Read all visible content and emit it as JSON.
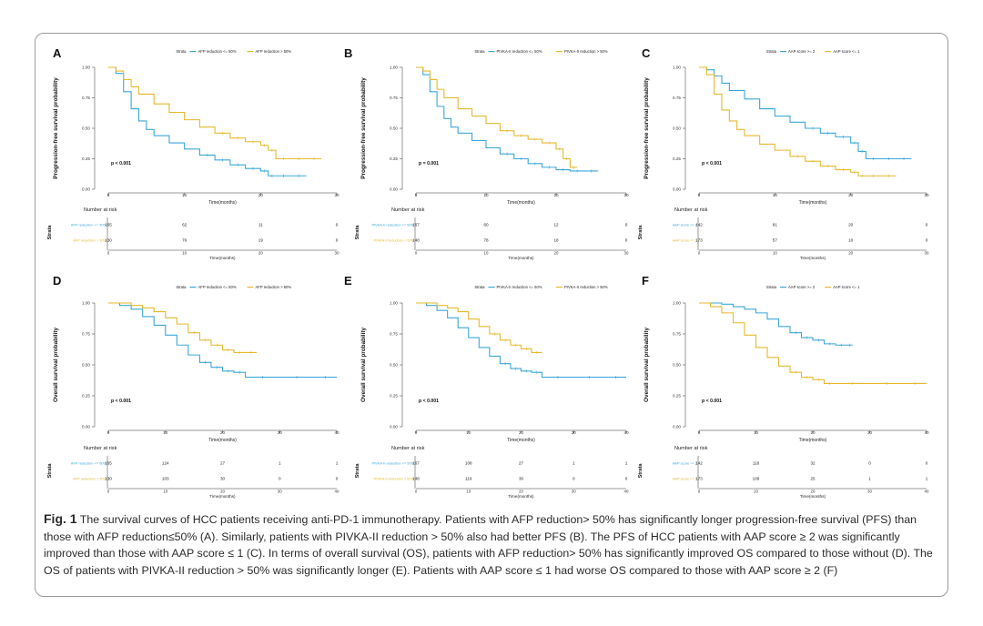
{
  "colors": {
    "series_a": "#3ba7d9",
    "series_b": "#e6b92d",
    "axis": "#333333",
    "frame": "#9a9a9a"
  },
  "caption": {
    "label": "Fig. 1",
    "text": "The survival curves of HCC patients receiving anti-PD-1 immunotherapy. Patients with AFP reduction> 50% has significantly longer progression-free survival (PFS) than those with AFP reduction≤50% (A). Similarly, patients with PIVKA-II reduction > 50% also had better PFS (B). The PFS of HCC patients with AAP score ≥ 2 was significantly improved than those with AAP score ≤ 1 (C). In terms of overall survival (OS), patients with AFP reduction> 50% has significantly improved OS compared to those without (D). The OS of patients with PIVKA-II reduction > 50% was significantly longer (E). Patients with AAP score ≤ 1 had worse OS compared to those with AAP score ≥ 2 (F)"
  },
  "chart_data": [
    {
      "panel": "A",
      "type": "line",
      "ylabel": "Progression-free survival probability",
      "xlabel": "Time(months)",
      "legend_title": "Strata",
      "xlim": [
        0,
        30
      ],
      "ylim": [
        0,
        1
      ],
      "xticks": [
        0,
        10,
        20,
        30
      ],
      "yticks": [
        "0.00",
        "0.25",
        "0.50",
        "0.75",
        "1.00"
      ],
      "pvalue": "p < 0.001",
      "risk_title": "Number at risk",
      "risk_ylabel": "Strata",
      "risk_times": [
        0,
        10,
        20,
        30
      ],
      "series": [
        {
          "name": "AFP reduction <= 50%",
          "risk": [
            "165",
            "62",
            "11",
            "0"
          ],
          "x": [
            0,
            1,
            2,
            3,
            4,
            5,
            6,
            8,
            10,
            12,
            14,
            16,
            18,
            20,
            21,
            22,
            24,
            26
          ],
          "y": [
            1.0,
            0.95,
            0.8,
            0.66,
            0.56,
            0.49,
            0.44,
            0.38,
            0.33,
            0.28,
            0.24,
            0.2,
            0.17,
            0.15,
            0.11,
            0.11,
            0.11,
            0.11
          ]
        },
        {
          "name": "AFP reduction > 50%",
          "risk": [
            "130",
            "76",
            "19",
            "0"
          ],
          "x": [
            0,
            1,
            2,
            3,
            4,
            6,
            8,
            10,
            12,
            14,
            16,
            18,
            20,
            21,
            22,
            24,
            26,
            28
          ],
          "y": [
            1.0,
            0.97,
            0.9,
            0.84,
            0.78,
            0.7,
            0.63,
            0.57,
            0.51,
            0.46,
            0.42,
            0.39,
            0.36,
            0.32,
            0.25,
            0.25,
            0.25,
            0.25
          ]
        }
      ]
    },
    {
      "panel": "B",
      "type": "line",
      "ylabel": "Progression-free survival probability",
      "xlabel": "Time(months)",
      "legend_title": "Strata",
      "xlim": [
        0,
        30
      ],
      "ylim": [
        0,
        1
      ],
      "xticks": [
        0,
        10,
        20,
        30
      ],
      "yticks": [
        "0.00",
        "0.25",
        "0.50",
        "0.75",
        "1.00"
      ],
      "pvalue": "p = 0.001",
      "risk_title": "Number at risk",
      "risk_ylabel": "Strata",
      "risk_times": [
        0,
        10,
        20,
        30
      ],
      "series": [
        {
          "name": "PIVKA-II reduction <= 50%",
          "risk": [
            "167",
            "60",
            "12",
            "0"
          ],
          "x": [
            0,
            1,
            2,
            3,
            4,
            5,
            6,
            8,
            10,
            12,
            14,
            16,
            18,
            20,
            22,
            24,
            26
          ],
          "y": [
            1.0,
            0.94,
            0.8,
            0.68,
            0.58,
            0.51,
            0.46,
            0.4,
            0.34,
            0.29,
            0.25,
            0.21,
            0.18,
            0.16,
            0.15,
            0.15,
            0.15
          ]
        },
        {
          "name": "PIVKA-II reduction > 50%",
          "risk": [
            "148",
            "78",
            "18",
            "0"
          ],
          "x": [
            0,
            1,
            2,
            3,
            4,
            6,
            8,
            10,
            12,
            14,
            16,
            18,
            20,
            21,
            22,
            23
          ],
          "y": [
            1.0,
            0.97,
            0.9,
            0.82,
            0.75,
            0.66,
            0.6,
            0.54,
            0.48,
            0.44,
            0.41,
            0.38,
            0.33,
            0.25,
            0.18,
            0.18
          ]
        }
      ]
    },
    {
      "panel": "C",
      "type": "line",
      "ylabel": "Progression-free survival probability",
      "xlabel": "Time(months)",
      "legend_title": "Strata",
      "xlim": [
        0,
        30
      ],
      "ylim": [
        0,
        1
      ],
      "xticks": [
        0,
        10,
        20,
        30
      ],
      "yticks": [
        "0.00",
        "0.25",
        "0.50",
        "0.75",
        "1.00"
      ],
      "pvalue": "p < 0.001",
      "risk_title": "Number at risk",
      "risk_ylabel": "Strata",
      "risk_times": [
        0,
        10,
        20,
        30
      ],
      "series": [
        {
          "name": "AAP score >= 2",
          "risk": [
            "142",
            "81",
            "20",
            "0"
          ],
          "x": [
            0,
            1,
            2,
            3,
            4,
            6,
            8,
            10,
            12,
            14,
            16,
            18,
            20,
            21,
            22,
            24,
            26,
            28
          ],
          "y": [
            1.0,
            0.98,
            0.93,
            0.87,
            0.81,
            0.74,
            0.66,
            0.6,
            0.55,
            0.5,
            0.46,
            0.43,
            0.38,
            0.31,
            0.25,
            0.25,
            0.25,
            0.25
          ]
        },
        {
          "name": "AAP score <= 1",
          "risk": [
            "173",
            "57",
            "10",
            "0"
          ],
          "x": [
            0,
            1,
            2,
            3,
            4,
            5,
            6,
            8,
            10,
            12,
            14,
            16,
            18,
            20,
            21,
            22,
            24,
            26
          ],
          "y": [
            1.0,
            0.94,
            0.78,
            0.65,
            0.56,
            0.49,
            0.44,
            0.37,
            0.32,
            0.27,
            0.23,
            0.19,
            0.16,
            0.14,
            0.11,
            0.11,
            0.11,
            0.11
          ]
        }
      ]
    },
    {
      "panel": "D",
      "type": "line",
      "ylabel": "Overall survival probability",
      "xlabel": "Time(months)",
      "legend_title": "Strata",
      "xlim": [
        0,
        40
      ],
      "ylim": [
        0,
        1
      ],
      "xticks": [
        0,
        10,
        20,
        30,
        40
      ],
      "yticks": [
        "0.00",
        "0.25",
        "0.50",
        "0.75",
        "1.00"
      ],
      "pvalue": "p < 0.001",
      "risk_title": "Number at risk",
      "risk_ylabel": "Strata",
      "risk_times": [
        0,
        10,
        20,
        30,
        40
      ],
      "series": [
        {
          "name": "AFP reduction <= 50%",
          "risk": [
            "165",
            "124",
            "27",
            "1",
            "1"
          ],
          "x": [
            0,
            2,
            4,
            6,
            8,
            10,
            12,
            14,
            16,
            18,
            20,
            22,
            24,
            30,
            36,
            40
          ],
          "y": [
            1.0,
            0.98,
            0.95,
            0.89,
            0.82,
            0.74,
            0.66,
            0.58,
            0.52,
            0.48,
            0.45,
            0.44,
            0.4,
            0.4,
            0.4,
            0.4
          ]
        },
        {
          "name": "AFP reduction > 50%",
          "risk": [
            "130",
            "103",
            "30",
            "0",
            "0"
          ],
          "x": [
            0,
            2,
            4,
            6,
            8,
            10,
            12,
            14,
            16,
            18,
            20,
            22,
            24,
            26
          ],
          "y": [
            1.0,
            1.0,
            0.98,
            0.96,
            0.93,
            0.88,
            0.83,
            0.76,
            0.7,
            0.66,
            0.62,
            0.6,
            0.6,
            0.6
          ]
        }
      ]
    },
    {
      "panel": "E",
      "type": "line",
      "ylabel": "Overall survival probability",
      "xlabel": "Time(months)",
      "legend_title": "Strata",
      "xlim": [
        0,
        40
      ],
      "ylim": [
        0,
        1
      ],
      "xticks": [
        0,
        10,
        20,
        30,
        40
      ],
      "yticks": [
        "0.00",
        "0.25",
        "0.50",
        "0.75",
        "1.00"
      ],
      "pvalue": "p < 0.001",
      "risk_title": "Number at risk",
      "risk_ylabel": "Strata",
      "risk_times": [
        0,
        10,
        20,
        30,
        40
      ],
      "series": [
        {
          "name": "PIVKA-II reduction <= 50%",
          "risk": [
            "167",
            "108",
            "27",
            "1",
            "1"
          ],
          "x": [
            0,
            2,
            4,
            6,
            8,
            10,
            12,
            14,
            16,
            18,
            20,
            22,
            24,
            30,
            36,
            40
          ],
          "y": [
            1.0,
            0.98,
            0.94,
            0.88,
            0.8,
            0.72,
            0.64,
            0.57,
            0.51,
            0.47,
            0.45,
            0.44,
            0.4,
            0.4,
            0.4,
            0.4
          ]
        },
        {
          "name": "PIVKA-II reduction > 50%",
          "risk": [
            "148",
            "119",
            "30",
            "0",
            "0"
          ],
          "x": [
            0,
            2,
            4,
            6,
            8,
            10,
            12,
            14,
            16,
            18,
            20,
            22,
            24
          ],
          "y": [
            1.0,
            1.0,
            0.98,
            0.96,
            0.93,
            0.87,
            0.81,
            0.75,
            0.7,
            0.66,
            0.63,
            0.6,
            0.6
          ]
        }
      ]
    },
    {
      "panel": "F",
      "type": "line",
      "ylabel": "Overall survival probability",
      "xlabel": "Time(months)",
      "legend_title": "Strata",
      "xlim": [
        0,
        40
      ],
      "ylim": [
        0,
        1
      ],
      "xticks": [
        0,
        10,
        20,
        30,
        40
      ],
      "yticks": [
        "0.00",
        "0.25",
        "0.50",
        "0.75",
        "1.00"
      ],
      "pvalue": "p < 0.001",
      "risk_title": "Number at risk",
      "risk_ylabel": "Strata",
      "risk_times": [
        0,
        10,
        20,
        30,
        40
      ],
      "series": [
        {
          "name": "AAP score >= 2",
          "risk": [
            "142",
            "118",
            "32",
            "0",
            "0"
          ],
          "x": [
            0,
            2,
            4,
            6,
            8,
            10,
            12,
            14,
            16,
            18,
            20,
            22,
            24,
            26,
            27
          ],
          "y": [
            1.0,
            1.0,
            0.99,
            0.97,
            0.95,
            0.92,
            0.87,
            0.81,
            0.76,
            0.72,
            0.7,
            0.67,
            0.66,
            0.66,
            0.66
          ]
        },
        {
          "name": "AAP score <= 1",
          "risk": [
            "173",
            "109",
            "25",
            "1",
            "1"
          ],
          "x": [
            0,
            2,
            4,
            6,
            8,
            10,
            12,
            14,
            16,
            18,
            20,
            22,
            24,
            30,
            36,
            40
          ],
          "y": [
            1.0,
            0.97,
            0.92,
            0.84,
            0.74,
            0.64,
            0.56,
            0.49,
            0.44,
            0.4,
            0.38,
            0.35,
            0.35,
            0.35,
            0.35,
            0.35
          ]
        }
      ]
    }
  ]
}
